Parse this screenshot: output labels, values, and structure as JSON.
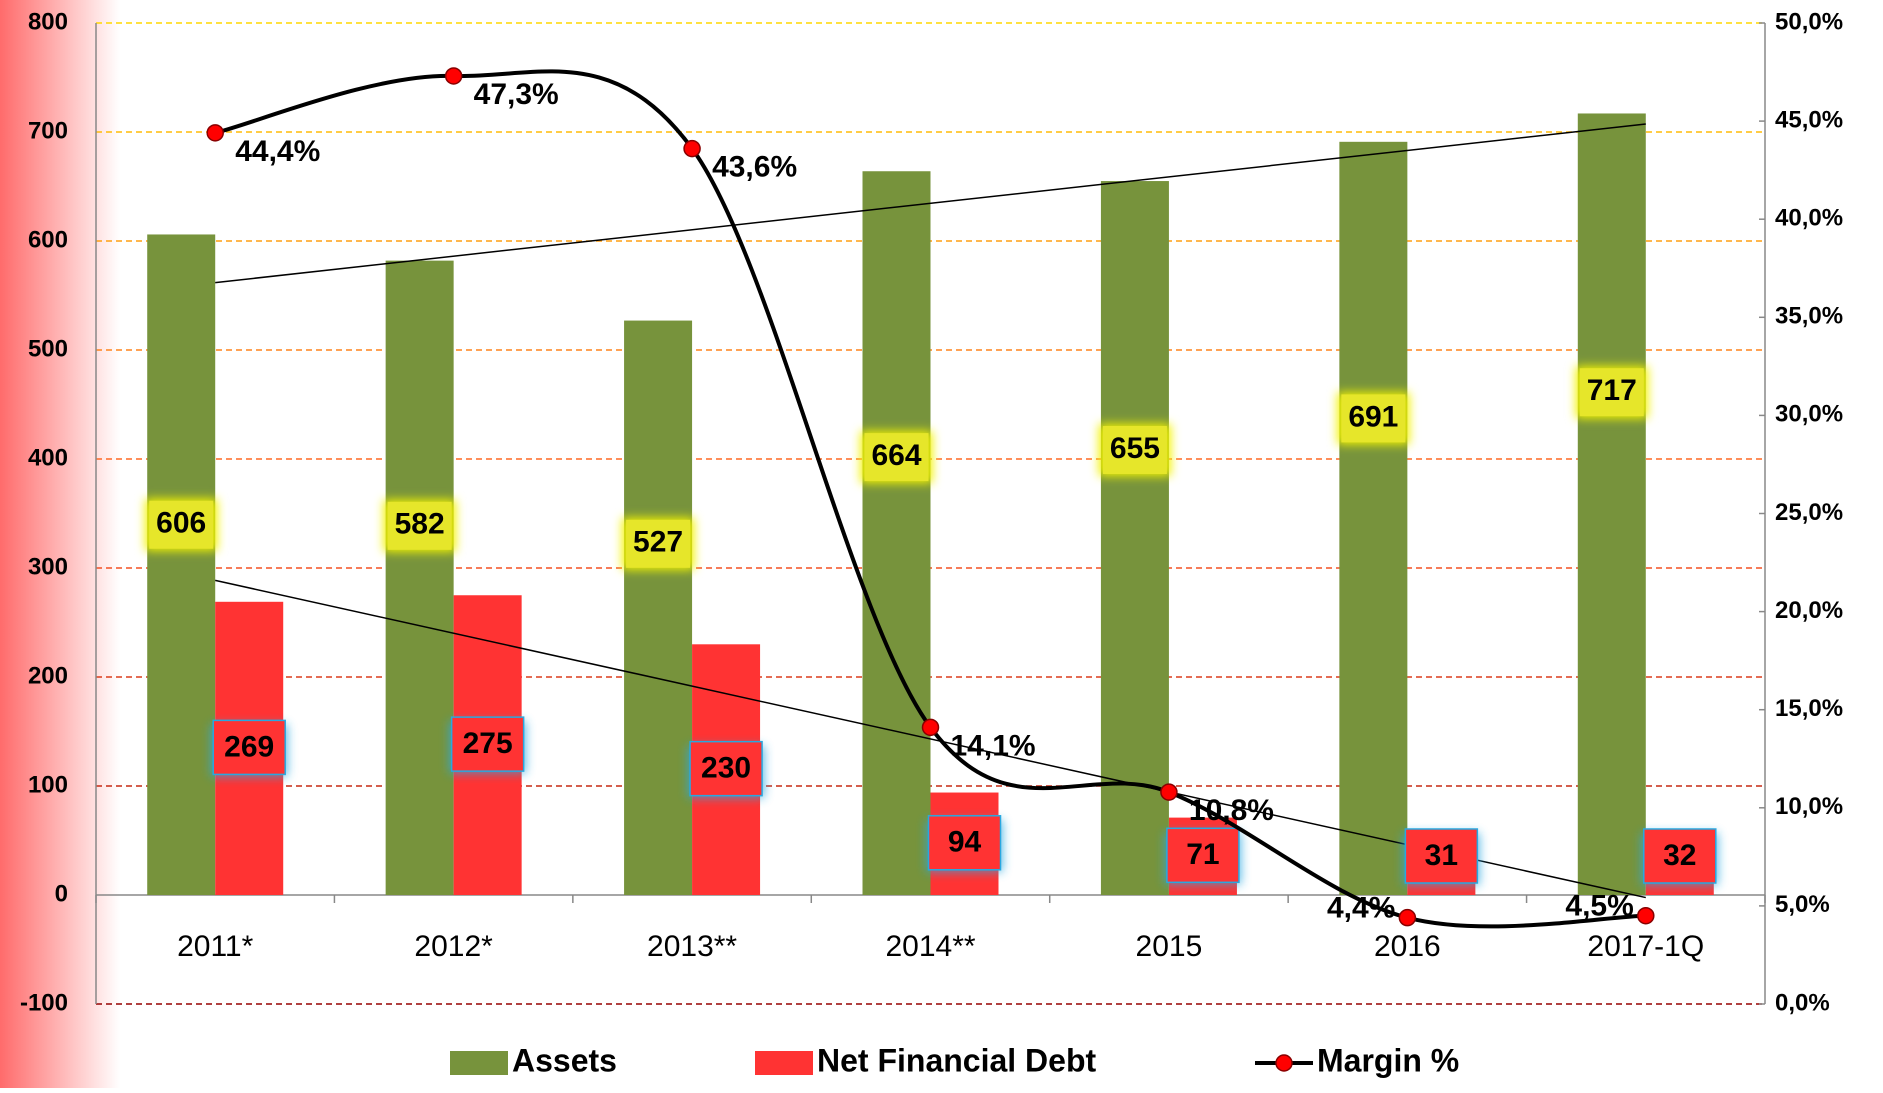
{
  "chart_data": {
    "type": "bar",
    "categories": [
      "2011*",
      "2012*",
      "2013**",
      "2014**",
      "2015",
      "2016",
      "2017-1Q"
    ],
    "series": [
      {
        "name": "Assets",
        "type": "bar",
        "color": "#77933c",
        "values": [
          606,
          582,
          527,
          664,
          655,
          691,
          717
        ],
        "trendline": true
      },
      {
        "name": "Net Financial Debt",
        "type": "bar",
        "color": "#ff3333",
        "values": [
          269,
          275,
          230,
          94,
          71,
          31,
          32
        ],
        "trendline": true
      },
      {
        "name": "Margin %",
        "type": "line",
        "axis": "y2",
        "color": "#000000",
        "marker_color": "#ff0000",
        "values": [
          44.4,
          47.3,
          43.6,
          14.1,
          10.8,
          4.4,
          4.5
        ],
        "value_labels": [
          "44,4%",
          "47,3%",
          "43,6%",
          "14,1%",
          "10,8%",
          "4,4%",
          "4,5%"
        ]
      }
    ],
    "ylim": [
      -100,
      800
    ],
    "yticks": [
      -100,
      0,
      100,
      200,
      300,
      400,
      500,
      600,
      700,
      800
    ],
    "y2lim": [
      0,
      50
    ],
    "y2ticks": [
      {
        "value": 0,
        "label": "0,0%"
      },
      {
        "value": 5,
        "label": "5,0%"
      },
      {
        "value": 10,
        "label": "10,0%"
      },
      {
        "value": 15,
        "label": "15,0%"
      },
      {
        "value": 20,
        "label": "20,0%"
      },
      {
        "value": 25,
        "label": "25,0%"
      },
      {
        "value": 30,
        "label": "30,0%"
      },
      {
        "value": 35,
        "label": "35,0%"
      },
      {
        "value": 40,
        "label": "40,0%"
      },
      {
        "value": 45,
        "label": "45,0%"
      },
      {
        "value": 50,
        "label": "50,0%"
      }
    ],
    "grid": true,
    "legend": "bottom"
  }
}
